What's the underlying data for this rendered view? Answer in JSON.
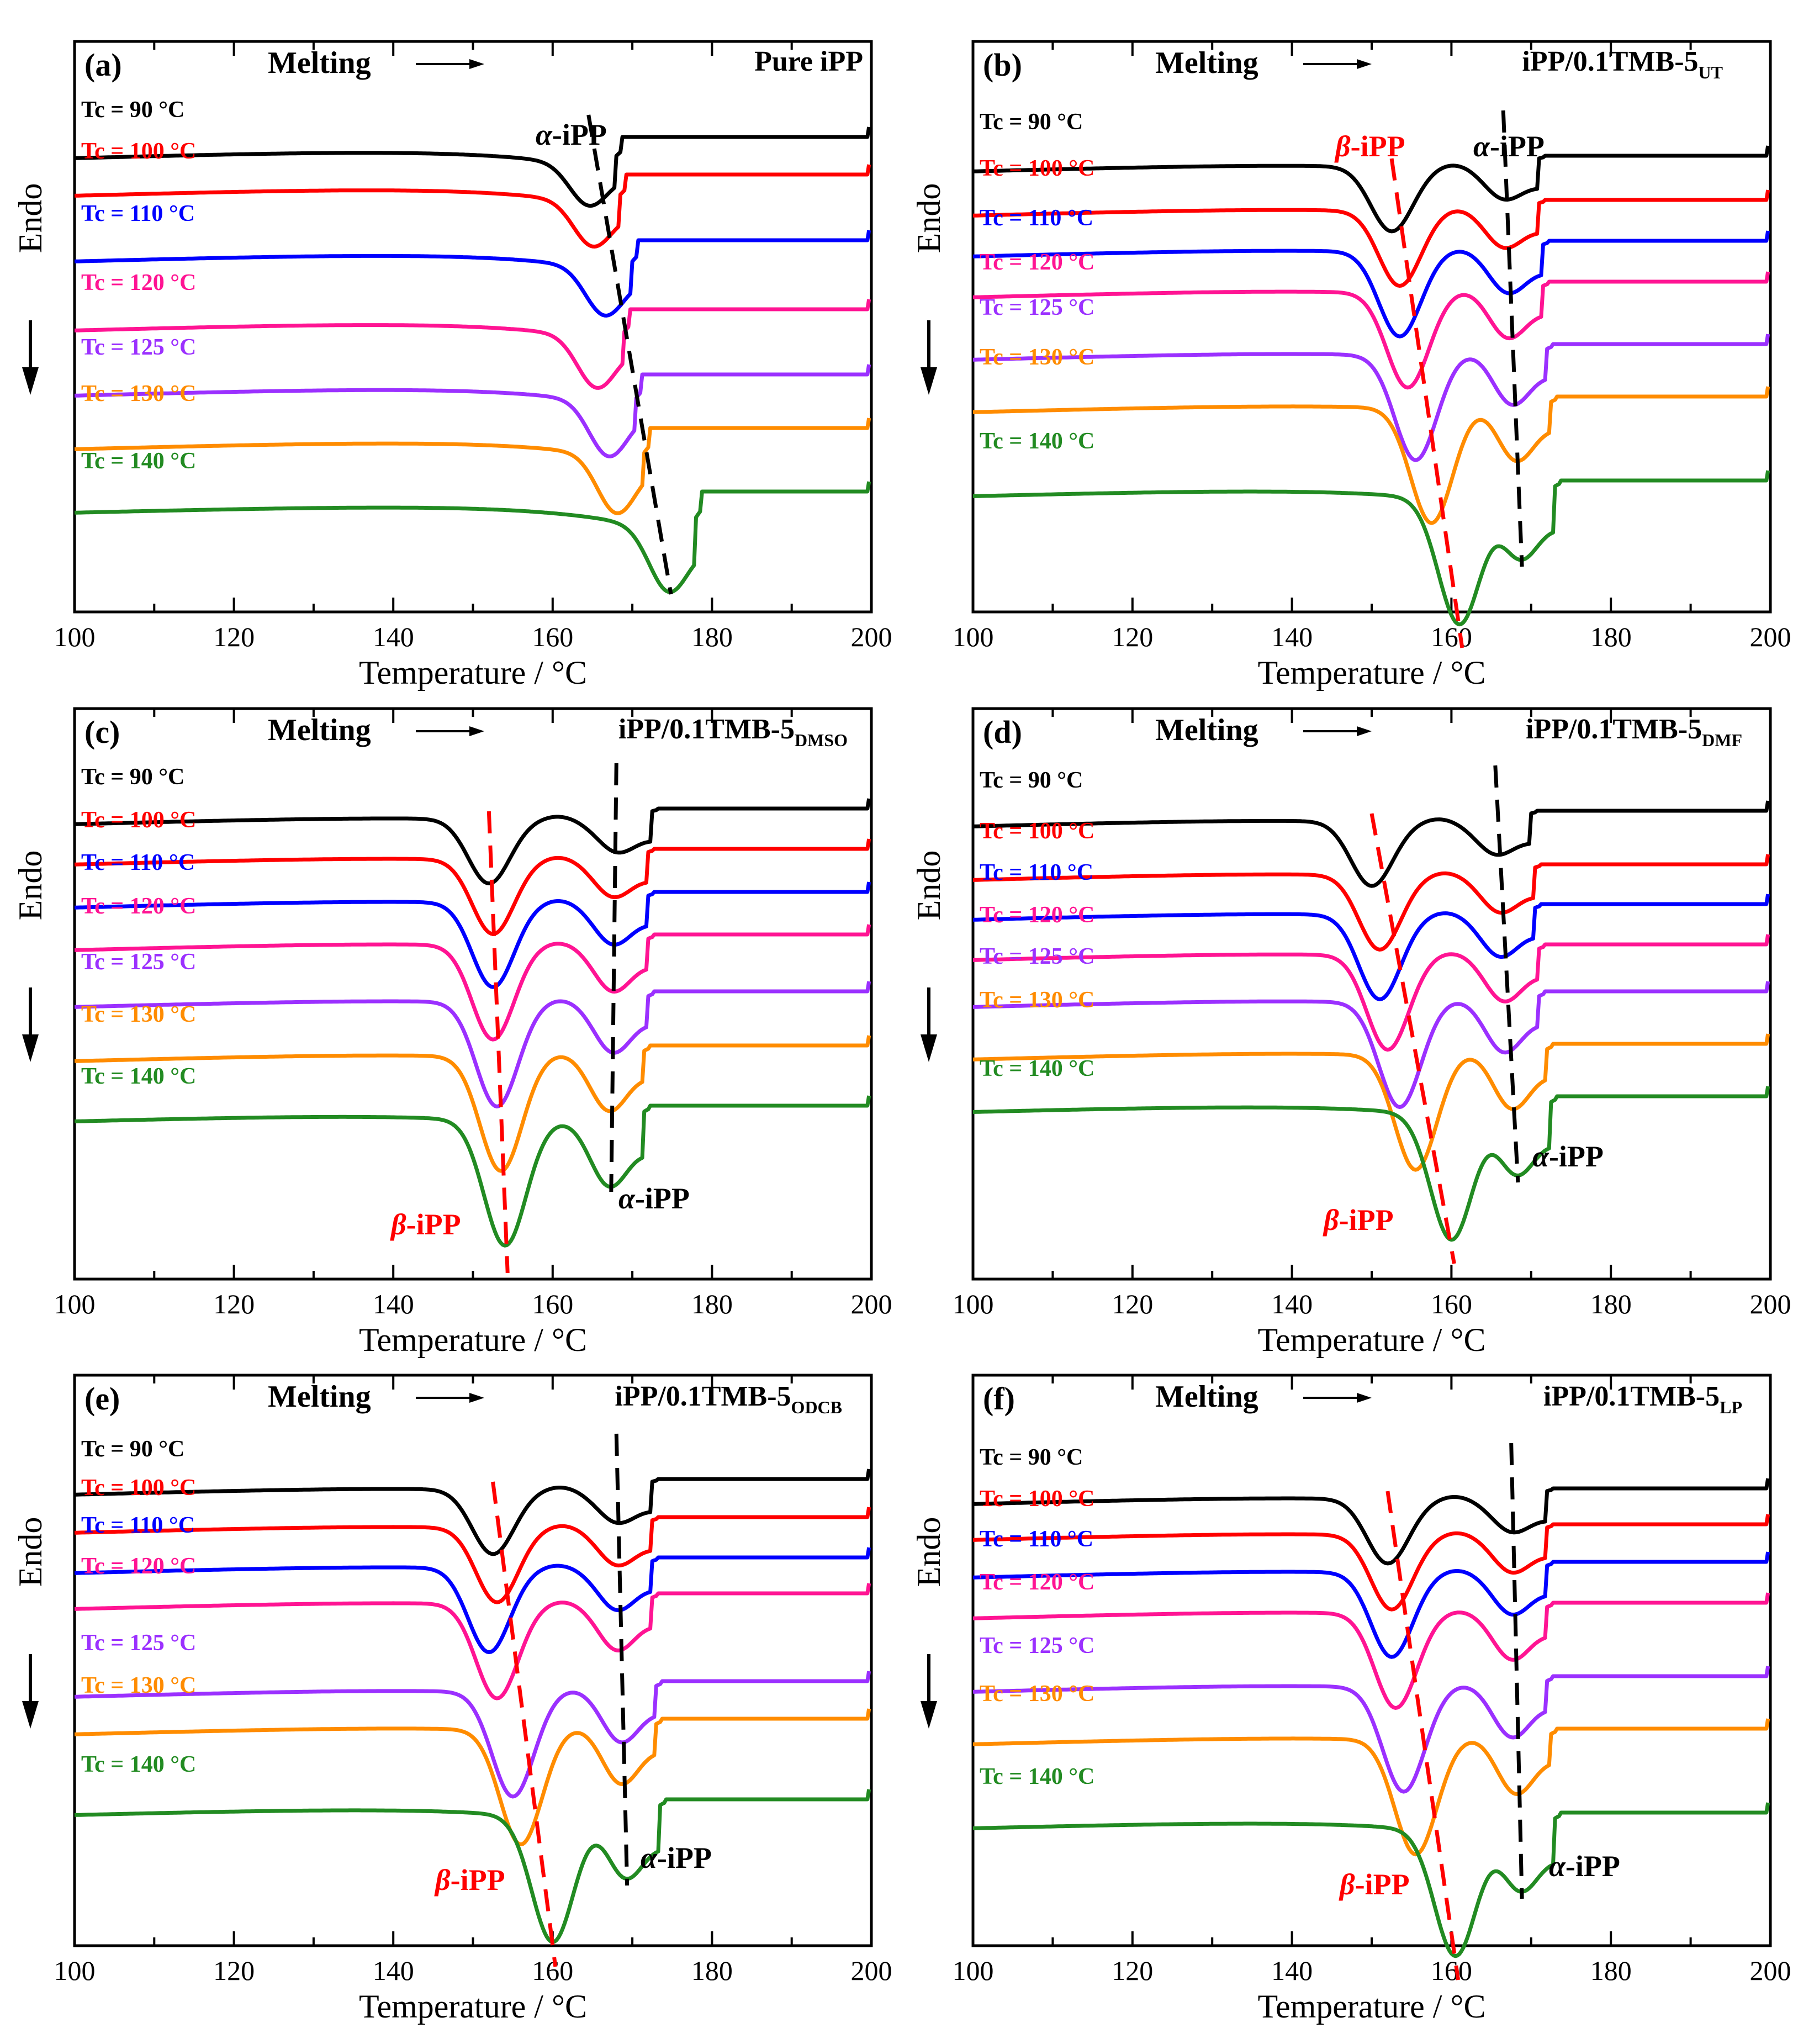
{
  "shared": {
    "xlabel": "Temperature / °C",
    "ylabel": "Endo",
    "melting_label": "Melting",
    "xlim": [
      100,
      200
    ],
    "x_ticks": [
      "100",
      "120",
      "140",
      "160",
      "180",
      "200"
    ],
    "series_labels": [
      "Tc = 90 °C",
      "Tc = 100 °C",
      "Tc = 110 °C",
      "Tc = 120 °C",
      "Tc = 125 °C",
      "Tc = 130 °C",
      "Tc = 140 °C"
    ],
    "colors": [
      "#000000",
      "#ff0000",
      "#0000ff",
      "#ff1493",
      "#9b30ff",
      "#ff8c00",
      "#228b22"
    ],
    "alpha_guide_color": "#000000",
    "beta_guide_color": "#ff0000"
  },
  "chart_data": [
    {
      "panel": "(a)",
      "title": "Pure iPP",
      "type": "line",
      "xlabel": "Temperature / °C",
      "ylabel": "Endo",
      "xlim": [
        100,
        200
      ],
      "series": [
        {
          "name": "Tc = 90 °C",
          "alpha_peak": 164.5,
          "beta_peak": null
        },
        {
          "name": "Tc = 100 °C",
          "alpha_peak": 165,
          "beta_peak": null
        },
        {
          "name": "Tc = 110 °C",
          "alpha_peak": 166.5,
          "beta_peak": null
        },
        {
          "name": "Tc = 120 °C",
          "alpha_peak": 165.5,
          "beta_peak": null
        },
        {
          "name": "Tc = 125 °C",
          "alpha_peak": 167,
          "beta_peak": null
        },
        {
          "name": "Tc = 130 °C",
          "alpha_peak": 168,
          "beta_peak": null
        },
        {
          "name": "Tc = 140 °C",
          "alpha_peak": 174.5,
          "beta_peak": null
        }
      ],
      "annotations": [
        {
          "text": "α-iPP",
          "greek": "α",
          "rest": "-iPP",
          "color": "#000000"
        }
      ]
    },
    {
      "panel": "(b)",
      "title": "iPP/0.1TMB-5",
      "title_sub": "UT",
      "type": "line",
      "xlabel": "Temperature / °C",
      "ylabel": "Endo",
      "xlim": [
        100,
        200
      ],
      "series": [
        {
          "name": "Tc = 90 °C",
          "beta_peak": 152.5,
          "alpha_peak": 166.5
        },
        {
          "name": "Tc = 100 °C",
          "beta_peak": 153.5,
          "alpha_peak": 166.5
        },
        {
          "name": "Tc = 110 °C",
          "beta_peak": 153.5,
          "alpha_peak": 167
        },
        {
          "name": "Tc = 120 °C",
          "beta_peak": 154.5,
          "alpha_peak": 167
        },
        {
          "name": "Tc = 125 °C",
          "beta_peak": 155.5,
          "alpha_peak": 167.5
        },
        {
          "name": "Tc = 130 °C",
          "beta_peak": 157.5,
          "alpha_peak": 168
        },
        {
          "name": "Tc = 140 °C",
          "beta_peak": 161,
          "alpha_peak": 168.5
        }
      ],
      "annotations": [
        {
          "text": "β-iPP",
          "greek": "β",
          "rest": "-iPP",
          "color": "#ff0000"
        },
        {
          "text": "α-iPP",
          "greek": "α",
          "rest": "-iPP",
          "color": "#000000"
        }
      ]
    },
    {
      "panel": "(c)",
      "title": "iPP/0.1TMB-5",
      "title_sub": "DMSO",
      "type": "line",
      "xlabel": "Temperature / °C",
      "ylabel": "Endo",
      "xlim": [
        100,
        200
      ],
      "series": [
        {
          "name": "Tc = 90 °C",
          "beta_peak": 152,
          "alpha_peak": 168
        },
        {
          "name": "Tc = 100 °C",
          "beta_peak": 152.5,
          "alpha_peak": 167.5
        },
        {
          "name": "Tc = 110 °C",
          "beta_peak": 152.5,
          "alpha_peak": 167.5
        },
        {
          "name": "Tc = 120 °C",
          "beta_peak": 152.5,
          "alpha_peak": 167.5
        },
        {
          "name": "Tc = 125 °C",
          "beta_peak": 153,
          "alpha_peak": 167.5
        },
        {
          "name": "Tc = 130 °C",
          "beta_peak": 153.5,
          "alpha_peak": 167
        },
        {
          "name": "Tc = 140 °C",
          "beta_peak": 154,
          "alpha_peak": 167
        }
      ],
      "annotations": [
        {
          "text": "β-iPP",
          "greek": "β",
          "rest": "-iPP",
          "color": "#ff0000"
        },
        {
          "text": "α-iPP",
          "greek": "α",
          "rest": "-iPP",
          "color": "#000000"
        }
      ]
    },
    {
      "panel": "(d)",
      "title": "iPP/0.1TMB-5",
      "title_sub": "DMF",
      "type": "line",
      "xlabel": "Temperature / °C",
      "ylabel": "Endo",
      "xlim": [
        100,
        200
      ],
      "series": [
        {
          "name": "Tc = 90 °C",
          "beta_peak": 150,
          "alpha_peak": 165.5
        },
        {
          "name": "Tc = 100 °C",
          "beta_peak": 151,
          "alpha_peak": 166
        },
        {
          "name": "Tc = 110 °C",
          "beta_peak": 151,
          "alpha_peak": 166
        },
        {
          "name": "Tc = 120 °C",
          "beta_peak": 152,
          "alpha_peak": 166.5
        },
        {
          "name": "Tc = 125 °C",
          "beta_peak": 153.5,
          "alpha_peak": 166.5
        },
        {
          "name": "Tc = 130 °C",
          "beta_peak": 155.5,
          "alpha_peak": 167.5
        },
        {
          "name": "Tc = 140 °C",
          "beta_peak": 160,
          "alpha_peak": 168
        }
      ],
      "annotations": [
        {
          "text": "β-iPP",
          "greek": "β",
          "rest": "-iPP",
          "color": "#ff0000"
        },
        {
          "text": "α-iPP",
          "greek": "α",
          "rest": "-iPP",
          "color": "#000000"
        }
      ]
    },
    {
      "panel": "(e)",
      "title": "iPP/0.1TMB-5",
      "title_sub": "ODCB",
      "type": "line",
      "xlabel": "Temperature / °C",
      "ylabel": "Endo",
      "xlim": [
        100,
        200
      ],
      "series": [
        {
          "name": "Tc = 90 °C",
          "beta_peak": 152.5,
          "alpha_peak": 168
        },
        {
          "name": "Tc = 100 °C",
          "beta_peak": 153,
          "alpha_peak": 168
        },
        {
          "name": "Tc = 110 °C",
          "beta_peak": 152,
          "alpha_peak": 168
        },
        {
          "name": "Tc = 120 °C",
          "beta_peak": 153,
          "alpha_peak": 168
        },
        {
          "name": "Tc = 125 °C",
          "beta_peak": 155,
          "alpha_peak": 168.5
        },
        {
          "name": "Tc = 130 °C",
          "beta_peak": 156,
          "alpha_peak": 168.5
        },
        {
          "name": "Tc = 140 °C",
          "beta_peak": 160,
          "alpha_peak": 169
        }
      ],
      "annotations": [
        {
          "text": "β-iPP",
          "greek": "β",
          "rest": "-iPP",
          "color": "#ff0000"
        },
        {
          "text": "α-iPP",
          "greek": "α",
          "rest": "-iPP",
          "color": "#000000"
        }
      ]
    },
    {
      "panel": "(f)",
      "title": "iPP/0.1TMB-5",
      "title_sub": "LP",
      "type": "line",
      "xlabel": "Temperature / °C",
      "ylabel": "Endo",
      "xlim": [
        100,
        200
      ],
      "series": [
        {
          "name": "Tc = 90 °C",
          "beta_peak": 152,
          "alpha_peak": 167.5
        },
        {
          "name": "Tc = 100 °C",
          "beta_peak": 152.5,
          "alpha_peak": 167.5
        },
        {
          "name": "Tc = 110 °C",
          "beta_peak": 152.5,
          "alpha_peak": 167.5
        },
        {
          "name": "Tc = 120 °C",
          "beta_peak": 153,
          "alpha_peak": 167.5
        },
        {
          "name": "Tc = 125 °C",
          "beta_peak": 154,
          "alpha_peak": 167.5
        },
        {
          "name": "Tc = 130 °C",
          "beta_peak": 155.5,
          "alpha_peak": 168
        },
        {
          "name": "Tc = 140 °C",
          "beta_peak": 160.5,
          "alpha_peak": 168.5
        }
      ],
      "annotations": [
        {
          "text": "β-iPP",
          "greek": "β",
          "rest": "-iPP",
          "color": "#ff0000"
        },
        {
          "text": "α-iPP",
          "greek": "α",
          "rest": "-iPP",
          "color": "#000000"
        }
      ]
    }
  ]
}
